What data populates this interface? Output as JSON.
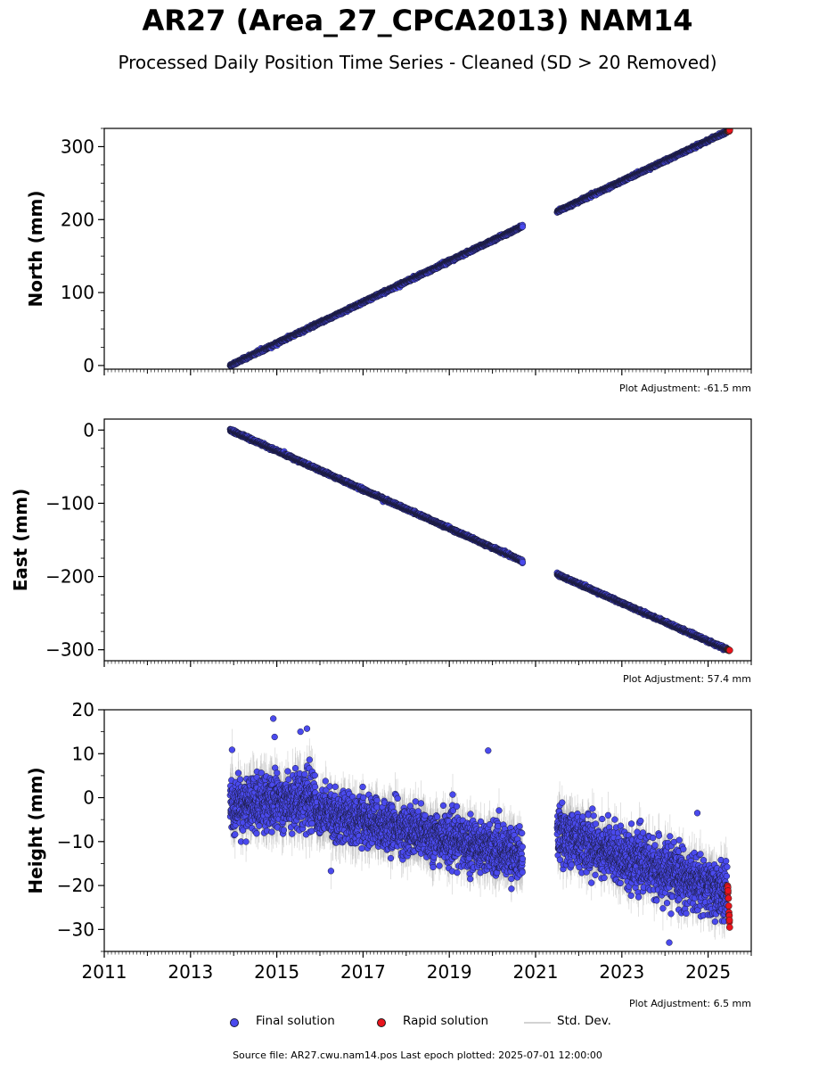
{
  "title": "AR27 (Area_27_CPCA2013) NAM14",
  "subtitle": "Processed Daily Position Time Series - Cleaned (SD > 20 Removed)",
  "legend": {
    "final_label": "Final solution",
    "rapid_label": "Rapid solution",
    "std_label": "Std. Dev.",
    "placement": "bottom-center"
  },
  "footer": "Source file: AR27.cwu.nam14.pos  Last epoch plotted: 2025-07-01 12:00:00",
  "colors": {
    "final": "#4a4aee",
    "rapid": "#e8141c",
    "std": "#b0b0b0",
    "edge": "#1a1a3a"
  },
  "chart_data": [
    {
      "type": "scatter",
      "ylabel": "North (mm)",
      "adjustment": "Plot Adjustment: -61.5 mm",
      "xlim": [
        2011,
        2026
      ],
      "ylim": [
        -5,
        325
      ],
      "yticks": [
        0,
        100,
        200,
        300
      ],
      "ytick_labels": [
        "0",
        "100",
        "200",
        "300"
      ],
      "yminor": 25,
      "show_xtick_labels": false,
      "segments": [
        {
          "x": [
            2013.92,
            2020.7
          ],
          "y": [
            0,
            191
          ],
          "noise": 1.5,
          "std": 1.5
        },
        {
          "x": [
            2021.5,
            2025.45
          ],
          "y": [
            211,
            321
          ],
          "noise": 1.5,
          "std": 1.5
        }
      ],
      "rapid": {
        "x": [
          2025.45,
          2025.5
        ],
        "y": [
          321,
          322
        ],
        "noise": 1.0
      }
    },
    {
      "type": "scatter",
      "ylabel": "East (mm)",
      "adjustment": "Plot Adjustment: 57.4 mm",
      "xlim": [
        2011,
        2026
      ],
      "ylim": [
        -315,
        15
      ],
      "yticks": [
        0,
        -100,
        -200,
        -300
      ],
      "ytick_labels": [
        "0",
        "−100",
        "−200",
        "−300"
      ],
      "yminor": 25,
      "show_xtick_labels": false,
      "segments": [
        {
          "x": [
            2013.92,
            2020.7
          ],
          "y": [
            0,
            -179
          ],
          "noise": 1.5,
          "std": 1.5
        },
        {
          "x": [
            2021.5,
            2025.45
          ],
          "y": [
            -197,
            -300
          ],
          "noise": 1.5,
          "std": 1.5
        }
      ],
      "rapid": {
        "x": [
          2025.45,
          2025.5
        ],
        "y": [
          -300,
          -301
        ],
        "noise": 1.0
      }
    },
    {
      "type": "scatter",
      "ylabel": "Height (mm)",
      "adjustment": "Plot Adjustment: 6.5 mm",
      "xlim": [
        2011,
        2026
      ],
      "ylim": [
        -35,
        20
      ],
      "yticks": [
        20,
        10,
        0,
        -10,
        -20,
        -30
      ],
      "ytick_labels": [
        "20",
        "10",
        "0",
        "−10",
        "−20",
        "−30"
      ],
      "yminor": 5,
      "show_xtick_labels": true,
      "xticks": [
        2011,
        2013,
        2015,
        2017,
        2019,
        2021,
        2023,
        2025
      ],
      "xtick_labels": [
        "2011",
        "2013",
        "2015",
        "2017",
        "2019",
        "2021",
        "2023",
        "2025"
      ],
      "segments": [
        {
          "x": [
            2013.92,
            2015.9
          ],
          "y": [
            -2,
            0
          ],
          "noise": 5.0,
          "std": 4.5
        },
        {
          "x": [
            2015.9,
            2020.7
          ],
          "y": [
            -3,
            -13
          ],
          "noise": 4.5,
          "std": 4.0
        },
        {
          "x": [
            2021.5,
            2025.45
          ],
          "y": [
            -8,
            -22
          ],
          "noise": 5.0,
          "std": 4.0
        }
      ],
      "outliers": [
        {
          "x": 2014.92,
          "y": 18
        },
        {
          "x": 2014.95,
          "y": 13.8
        },
        {
          "x": 2015.55,
          "y": 15
        },
        {
          "x": 2015.7,
          "y": 15.7
        },
        {
          "x": 2019.9,
          "y": 10.7
        },
        {
          "x": 2024.1,
          "y": -33
        },
        {
          "x": 2024.75,
          "y": -3.5
        }
      ],
      "rapid": {
        "x": [
          2025.45,
          2025.5
        ],
        "y": [
          -20,
          -29
        ],
        "noise": 1.5
      }
    }
  ]
}
